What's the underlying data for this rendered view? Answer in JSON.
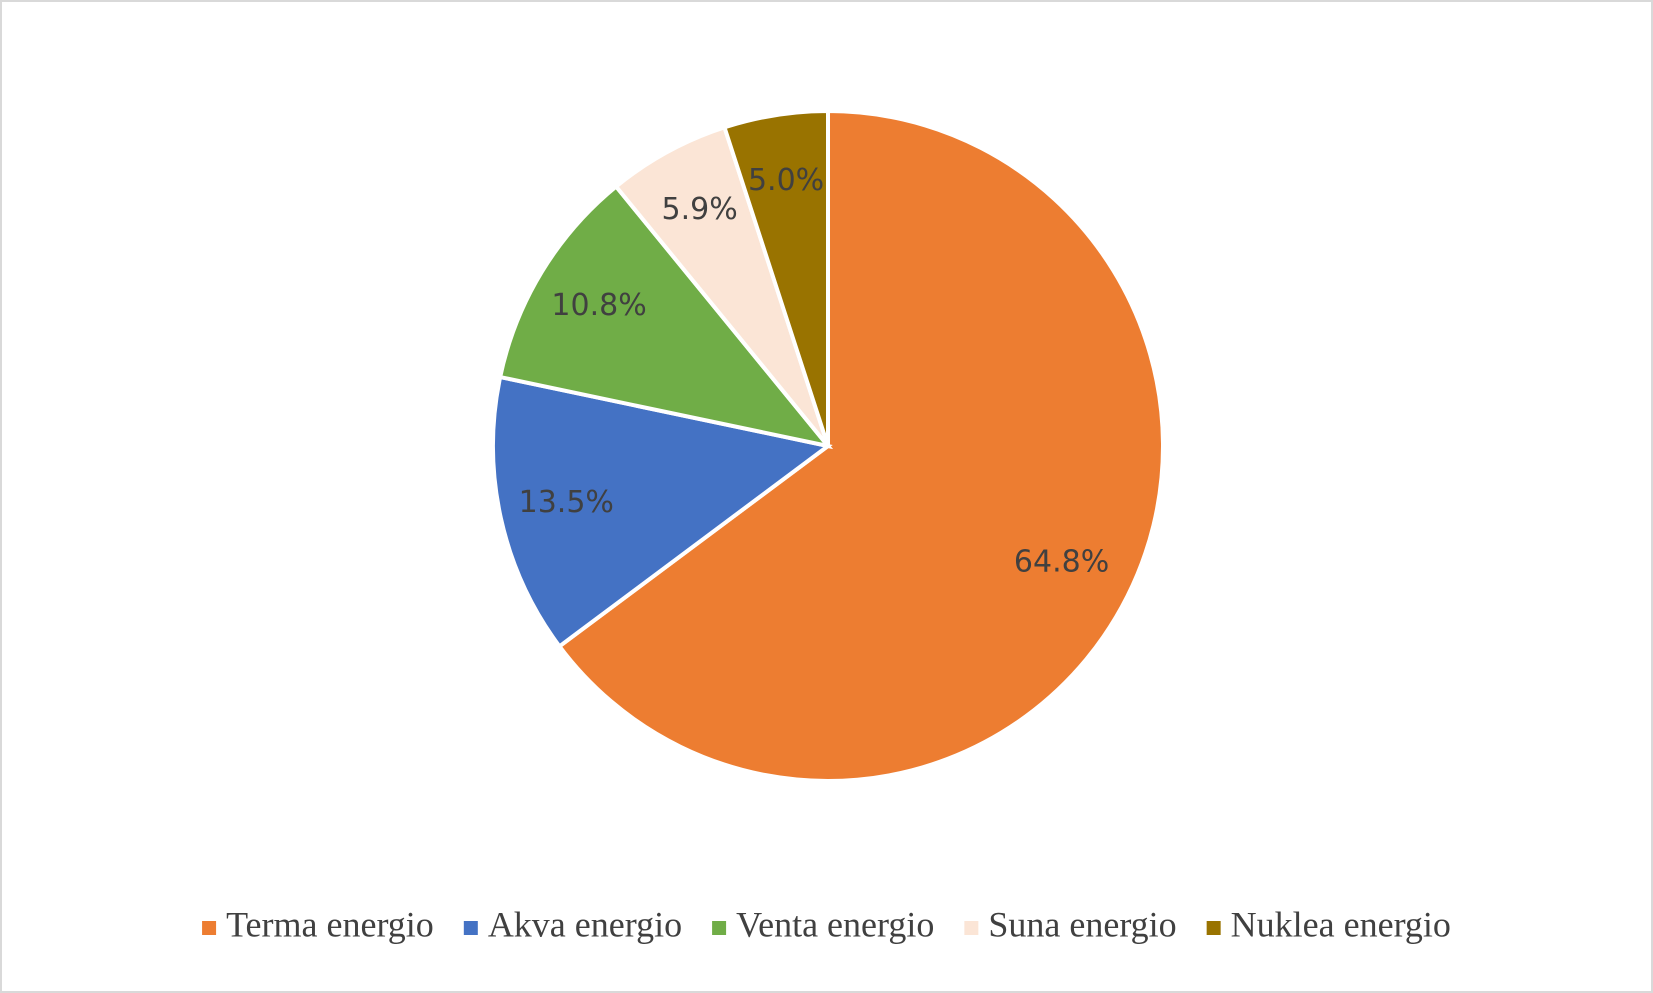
{
  "chart_data": {
    "type": "pie",
    "categories": [
      "Terma energio",
      "Akva energio",
      "Venta energio",
      "Suna energio",
      "Nuklea energio"
    ],
    "values": [
      64.8,
      13.5,
      10.8,
      5.9,
      5.0
    ],
    "value_labels": [
      "64.8%",
      "13.5%",
      "10.8%",
      "5.9%",
      "5.0%"
    ],
    "colors": [
      "#ed7d31",
      "#4472c4",
      "#70ad47",
      "#fbe5d6",
      "#997300"
    ],
    "legend": "bottom"
  }
}
